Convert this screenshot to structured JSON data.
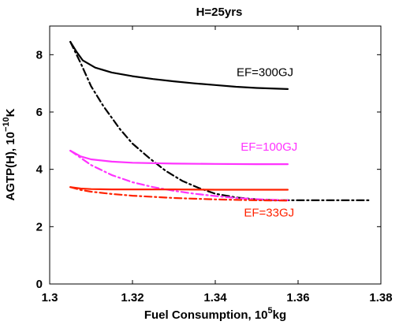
{
  "chart_data": {
    "type": "line",
    "title": "H=25yrs",
    "xlabel": {
      "pre": "Fuel Consumption, 10",
      "sup": "5",
      "post": "kg"
    },
    "ylabel": {
      "pre": "AGTP(H), 10",
      "sup": "−10",
      "post": "K"
    },
    "xlim": [
      1.3,
      1.38
    ],
    "ylim": [
      0,
      9
    ],
    "xticks": [
      1.3,
      1.32,
      1.34,
      1.36,
      1.38
    ],
    "xtick_labels": [
      "1.3",
      "1.32",
      "1.34",
      "1.36",
      "1.38"
    ],
    "yticks": [
      0,
      2,
      4,
      6,
      8
    ],
    "ytick_labels": [
      "0",
      "2",
      "4",
      "6",
      "8"
    ],
    "grid": false,
    "series": [
      {
        "color": "#000000",
        "style": "solid",
        "x": [
          1.305,
          1.3065,
          1.308,
          1.311,
          1.315,
          1.32,
          1.325,
          1.33,
          1.335,
          1.34,
          1.345,
          1.35,
          1.3575
        ],
        "y": [
          8.45,
          8.1,
          7.8,
          7.55,
          7.38,
          7.25,
          7.15,
          7.07,
          7.0,
          6.94,
          6.88,
          6.84,
          6.8
        ]
      },
      {
        "color": "#000000",
        "style": "dashdot",
        "x": [
          1.305,
          1.3075,
          1.31,
          1.313,
          1.317,
          1.32,
          1.324,
          1.328,
          1.332,
          1.336,
          1.34,
          1.345,
          1.35,
          1.355,
          1.36,
          1.365,
          1.37,
          1.377
        ],
        "y": [
          8.45,
          7.7,
          6.9,
          6.2,
          5.4,
          4.9,
          4.4,
          3.95,
          3.6,
          3.35,
          3.15,
          3.02,
          2.95,
          2.92,
          2.92,
          2.92,
          2.92,
          2.92
        ]
      },
      {
        "color": "#ff33ff",
        "style": "solid",
        "x": [
          1.305,
          1.3075,
          1.31,
          1.315,
          1.32,
          1.33,
          1.34,
          1.35,
          1.3575
        ],
        "y": [
          4.65,
          4.45,
          4.35,
          4.27,
          4.23,
          4.2,
          4.19,
          4.18,
          4.18
        ]
      },
      {
        "color": "#ff33ff",
        "style": "dashdot",
        "x": [
          1.305,
          1.3075,
          1.31,
          1.315,
          1.32,
          1.325,
          1.33,
          1.335,
          1.34,
          1.345,
          1.35,
          1.355,
          1.3575
        ],
        "y": [
          4.65,
          4.4,
          4.15,
          3.8,
          3.55,
          3.38,
          3.25,
          3.15,
          3.07,
          3.0,
          2.96,
          2.93,
          2.92
        ]
      },
      {
        "color": "#ff2200",
        "style": "solid",
        "x": [
          1.305,
          1.3075,
          1.31,
          1.315,
          1.32,
          1.33,
          1.34,
          1.35,
          1.3575
        ],
        "y": [
          3.38,
          3.33,
          3.31,
          3.3,
          3.3,
          3.3,
          3.29,
          3.29,
          3.29
        ]
      },
      {
        "color": "#ff2200",
        "style": "dashdot",
        "x": [
          1.305,
          1.3075,
          1.31,
          1.315,
          1.32,
          1.33,
          1.34,
          1.35,
          1.3575
        ],
        "y": [
          3.38,
          3.28,
          3.22,
          3.14,
          3.08,
          3.0,
          2.95,
          2.92,
          2.91
        ]
      }
    ],
    "annotations": [
      {
        "text": "EF=300GJ",
        "x": 1.352,
        "y": 7.25,
        "color": "#000000"
      },
      {
        "text": "EF=100GJ",
        "x": 1.353,
        "y": 4.65,
        "color": "#ff33ff"
      },
      {
        "text": "EF=33GJ",
        "x": 1.353,
        "y": 2.35,
        "color": "#ff2200"
      }
    ]
  }
}
